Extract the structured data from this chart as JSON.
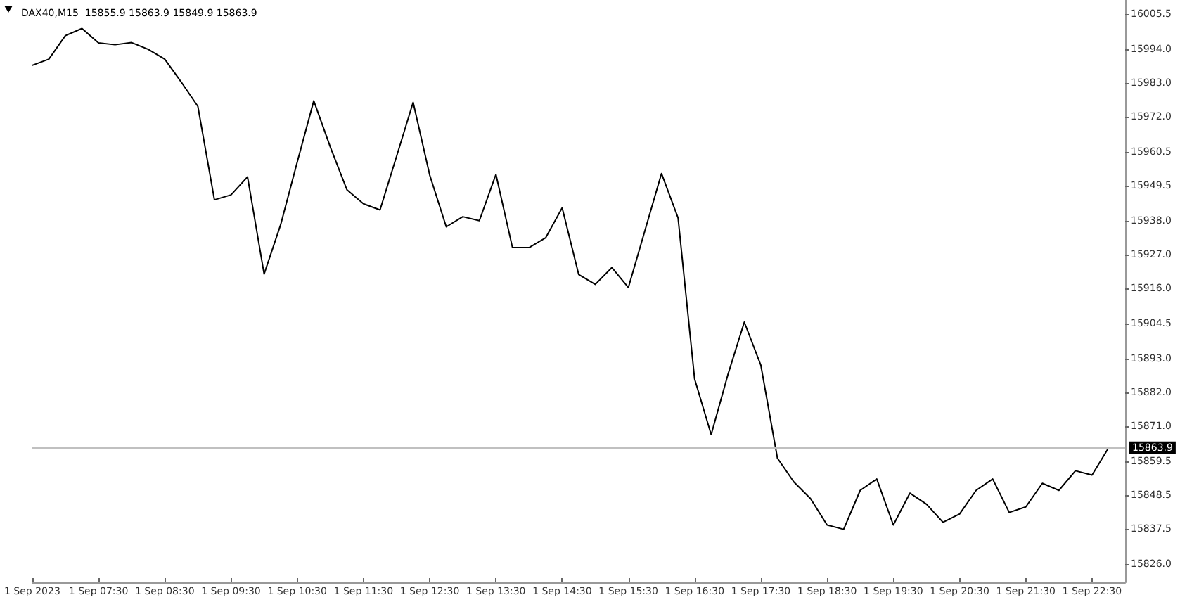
{
  "chart_data": {
    "type": "line",
    "title": "DAX40,M15  15855.9 15863.9 15849.9 15863.9",
    "x": [
      "2023-09-01T06:30",
      "2023-09-01T06:45",
      "2023-09-01T07:00",
      "2023-09-01T07:15",
      "2023-09-01T07:30",
      "2023-09-01T07:45",
      "2023-09-01T08:00",
      "2023-09-01T08:15",
      "2023-09-01T08:30",
      "2023-09-01T08:45",
      "2023-09-01T09:00",
      "2023-09-01T09:15",
      "2023-09-01T09:30",
      "2023-09-01T09:45",
      "2023-09-01T10:00",
      "2023-09-01T10:15",
      "2023-09-01T10:30",
      "2023-09-01T10:45",
      "2023-09-01T11:00",
      "2023-09-01T11:15",
      "2023-09-01T11:30",
      "2023-09-01T11:45",
      "2023-09-01T12:00",
      "2023-09-01T12:15",
      "2023-09-01T12:30",
      "2023-09-01T12:45",
      "2023-09-01T13:00",
      "2023-09-01T13:15",
      "2023-09-01T13:30",
      "2023-09-01T13:45",
      "2023-09-01T14:00",
      "2023-09-01T14:15",
      "2023-09-01T14:30",
      "2023-09-01T14:45",
      "2023-09-01T15:00",
      "2023-09-01T15:15",
      "2023-09-01T15:30",
      "2023-09-01T15:45",
      "2023-09-01T16:00",
      "2023-09-01T16:15",
      "2023-09-01T16:30",
      "2023-09-01T16:45",
      "2023-09-01T17:00",
      "2023-09-01T17:15",
      "2023-09-01T17:30",
      "2023-09-01T17:45",
      "2023-09-01T18:00",
      "2023-09-01T18:15",
      "2023-09-01T18:30",
      "2023-09-01T18:45",
      "2023-09-01T19:00",
      "2023-09-01T19:15",
      "2023-09-01T19:30",
      "2023-09-01T19:45",
      "2023-09-01T20:00",
      "2023-09-01T20:15",
      "2023-09-01T20:30",
      "2023-09-01T20:45",
      "2023-09-01T21:00",
      "2023-09-01T21:15",
      "2023-09-01T21:30",
      "2023-09-01T21:45",
      "2023-09-01T22:00",
      "2023-09-01T22:15",
      "2023-09-01T22:30",
      "2023-09-01T22:45"
    ],
    "series": [
      {
        "color": "#000000",
        "values": [
          15988.7,
          15990.7,
          15998.4,
          16000.7,
          15996.0,
          15995.4,
          15996.1,
          15993.9,
          15990.7,
          15983.2,
          15975.3,
          15944.8,
          15946.4,
          15952.3,
          15920.6,
          15936.7,
          15957.1,
          15977.1,
          15962.0,
          15948.1,
          15943.5,
          15941.5,
          15959.0,
          15976.6,
          15952.9,
          15936.0,
          15939.3,
          15938.0,
          15953.1,
          15929.2,
          15929.2,
          15932.4,
          15942.2,
          15920.4,
          15917.2,
          15922.7,
          15916.2,
          15934.8,
          15953.4,
          15938.9,
          15886.3,
          15868.2,
          15887.6,
          15904.9,
          15890.8,
          15860.5,
          15852.7,
          15847.3,
          15838.7,
          15837.3,
          15850.0,
          15853.7,
          15838.7,
          15849.1,
          15845.5,
          15839.6,
          15842.3,
          15850.0,
          15853.7,
          15842.8,
          15844.6,
          15852.3,
          15850.0,
          15856.4,
          15855.0,
          15863.9
        ]
      }
    ],
    "xlim": [
      "2023-09-01T06:30",
      "2023-09-01T23:00"
    ],
    "xticks": [
      {
        "value": "2023-09-01T06:30",
        "label": "1 Sep 2023"
      },
      {
        "value": "2023-09-01T07:30",
        "label": "1 Sep 07:30"
      },
      {
        "value": "2023-09-01T08:30",
        "label": "1 Sep 08:30"
      },
      {
        "value": "2023-09-01T09:30",
        "label": "1 Sep 09:30"
      },
      {
        "value": "2023-09-01T10:30",
        "label": "1 Sep 10:30"
      },
      {
        "value": "2023-09-01T11:30",
        "label": "1 Sep 11:30"
      },
      {
        "value": "2023-09-01T12:30",
        "label": "1 Sep 12:30"
      },
      {
        "value": "2023-09-01T13:30",
        "label": "1 Sep 13:30"
      },
      {
        "value": "2023-09-01T14:30",
        "label": "1 Sep 14:30"
      },
      {
        "value": "2023-09-01T15:30",
        "label": "1 Sep 15:30"
      },
      {
        "value": "2023-09-01T16:30",
        "label": "1 Sep 16:30"
      },
      {
        "value": "2023-09-01T17:30",
        "label": "1 Sep 17:30"
      },
      {
        "value": "2023-09-01T18:30",
        "label": "1 Sep 18:30"
      },
      {
        "value": "2023-09-01T19:30",
        "label": "1 Sep 19:30"
      },
      {
        "value": "2023-09-01T20:30",
        "label": "1 Sep 20:30"
      },
      {
        "value": "2023-09-01T21:30",
        "label": "1 Sep 21:30"
      },
      {
        "value": "2023-09-01T22:30",
        "label": "1 Sep 22:30"
      }
    ],
    "ylim": [
      15820,
      16010
    ],
    "yticks": [
      {
        "value": 16005.5,
        "label": "16005.5"
      },
      {
        "value": 15994,
        "label": "15994.0"
      },
      {
        "value": 15983,
        "label": "15983.0"
      },
      {
        "value": 15972,
        "label": "15972.0"
      },
      {
        "value": 15960.5,
        "label": "15960.5"
      },
      {
        "value": 15949.5,
        "label": "15949.5"
      },
      {
        "value": 15938,
        "label": "15938.0"
      },
      {
        "value": 15927,
        "label": "15927.0"
      },
      {
        "value": 15916,
        "label": "15916.0"
      },
      {
        "value": 15904.5,
        "label": "15904.5"
      },
      {
        "value": 15893,
        "label": "15893.0"
      },
      {
        "value": 15882,
        "label": "15882.0"
      },
      {
        "value": 15871,
        "label": "15871.0"
      },
      {
        "value": 15859.5,
        "label": "15859.5"
      },
      {
        "value": 15848.5,
        "label": "15848.5"
      },
      {
        "value": 15837.5,
        "label": "15837.5"
      },
      {
        "value": 15826,
        "label": "15826.0"
      }
    ],
    "ref_lines": [
      {
        "axis": "y",
        "value": 15863.9,
        "label": "15863.9",
        "color": "#c0c0c0"
      }
    ],
    "marker": "none",
    "line_style": "solid"
  }
}
